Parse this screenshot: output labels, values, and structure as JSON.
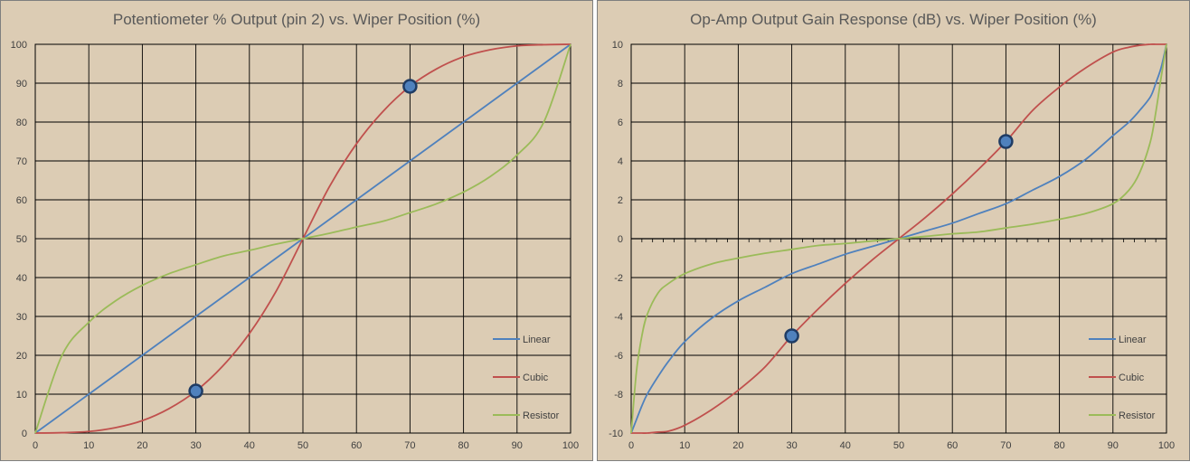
{
  "chart_data": [
    {
      "type": "line",
      "title": "Potentiometer % Output (pin 2) vs. Wiper Position (%)",
      "xlabel": "",
      "ylabel": "",
      "xlim": [
        0,
        100
      ],
      "ylim": [
        0,
        100
      ],
      "x_ticks": [
        "0",
        "10",
        "20",
        "30",
        "40",
        "50",
        "60",
        "70",
        "80",
        "90",
        "100"
      ],
      "y_ticks": [
        "0",
        "10",
        "20",
        "30",
        "40",
        "50",
        "60",
        "70",
        "80",
        "90",
        "100"
      ],
      "grid": true,
      "legend_position": "right",
      "x": [
        0,
        5,
        10,
        15,
        20,
        25,
        30,
        35,
        40,
        45,
        50,
        55,
        60,
        65,
        70,
        75,
        80,
        85,
        90,
        95,
        100
      ],
      "series": [
        {
          "name": "Linear",
          "color": "#4f81bd",
          "values": [
            0,
            5,
            10,
            15,
            20,
            25,
            30,
            35,
            40,
            45,
            50,
            55,
            60,
            65,
            70,
            75,
            80,
            85,
            90,
            95,
            100
          ]
        },
        {
          "name": "Cubic",
          "color": "#c0504d",
          "values": [
            0,
            0.1,
            0.4,
            1.4,
            3.2,
            6.3,
            10.8,
            17.2,
            25.6,
            36.5,
            50,
            63.5,
            74.4,
            82.8,
            89.2,
            93.7,
            96.8,
            98.6,
            99.6,
            99.9,
            100
          ]
        },
        {
          "name": "Resistor",
          "color": "#9bbb59",
          "values": [
            0,
            20,
            28.5,
            34,
            38,
            41,
            43.3,
            45.5,
            47,
            48.6,
            50,
            51.4,
            53,
            54.5,
            56.7,
            59,
            62,
            66,
            71.5,
            80,
            100
          ]
        }
      ],
      "markers": [
        {
          "x": 30,
          "y": 10.8
        },
        {
          "x": 70,
          "y": 89.2
        }
      ]
    },
    {
      "type": "line",
      "title": "Op-Amp Output Gain Response (dB) vs. Wiper Position (%)",
      "xlabel": "",
      "ylabel": "",
      "xlim": [
        0,
        100
      ],
      "ylim": [
        -10,
        10
      ],
      "x_ticks": [
        "0",
        "10",
        "20",
        "30",
        "40",
        "50",
        "60",
        "70",
        "80",
        "90",
        "100"
      ],
      "y_ticks": [
        "-10",
        "-8",
        "-6",
        "-4",
        "-2",
        "0",
        "2",
        "4",
        "6",
        "8",
        "10"
      ],
      "grid": true,
      "legend_position": "right",
      "x": [
        0,
        1,
        2,
        3,
        5,
        7,
        10,
        15,
        20,
        25,
        30,
        35,
        40,
        45,
        50,
        55,
        60,
        65,
        70,
        75,
        80,
        85,
        90,
        93,
        95,
        97,
        98,
        99,
        100
      ],
      "series": [
        {
          "name": "Linear",
          "color": "#4f81bd",
          "values": [
            -10,
            -9.3,
            -8.6,
            -8.0,
            -7.1,
            -6.3,
            -5.3,
            -4.1,
            -3.2,
            -2.5,
            -1.8,
            -1.3,
            -0.8,
            -0.4,
            0,
            0.4,
            0.8,
            1.3,
            1.8,
            2.5,
            3.2,
            4.1,
            5.3,
            6.0,
            6.6,
            7.3,
            8.0,
            8.8,
            10
          ]
        },
        {
          "name": "Cubic",
          "color": "#c0504d",
          "values": [
            -10,
            -10,
            -10,
            -10,
            -9.95,
            -9.9,
            -9.6,
            -8.8,
            -7.8,
            -6.6,
            -5.0,
            -3.6,
            -2.3,
            -1.1,
            0,
            1.1,
            2.3,
            3.6,
            5.0,
            6.6,
            7.8,
            8.8,
            9.6,
            9.85,
            9.95,
            10,
            10,
            10,
            10
          ]
        },
        {
          "name": "Resistor",
          "color": "#9bbb59",
          "values": [
            -10,
            -6.8,
            -5.0,
            -3.9,
            -2.8,
            -2.3,
            -1.8,
            -1.3,
            -1.0,
            -0.75,
            -0.55,
            -0.35,
            -0.25,
            -0.12,
            0,
            0.12,
            0.25,
            0.35,
            0.55,
            0.75,
            1.0,
            1.3,
            1.8,
            2.5,
            3.4,
            5.0,
            6.5,
            8.3,
            10
          ]
        }
      ],
      "markers": [
        {
          "x": 30,
          "y": -5
        },
        {
          "x": 70,
          "y": 5
        }
      ]
    }
  ]
}
